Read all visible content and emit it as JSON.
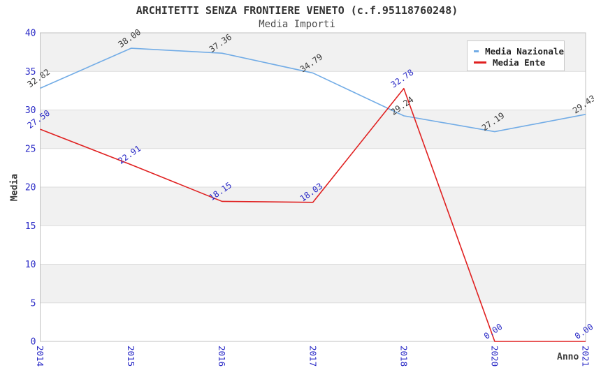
{
  "header": {
    "title": "ARCHITETTI SENZA FRONTIERE VENETO (c.f.95118760248)",
    "subtitle": "Media Importi"
  },
  "colors": {
    "tick_label": "#2a2ac6",
    "grid_line": "#dcdcdc",
    "band_fill": "#f1f1f1",
    "plot_border": "#c0c0c0",
    "title_text": "#333333",
    "axis_title_text": "#3a3a3a"
  },
  "legend": {
    "position": "top-right",
    "items": [
      {
        "label": "Media Nazionale",
        "color": "#72ace6"
      },
      {
        "label": "Media Ente",
        "color": "#e02020"
      }
    ]
  },
  "chart_data": {
    "type": "line",
    "title": "ARCHITETTI SENZA FRONTIERE VENETO (c.f.95118760248)",
    "subtitle": "Media Importi",
    "xlabel": "Anno",
    "ylabel": "Media",
    "categories": [
      "2014",
      "2015",
      "2016",
      "2017",
      "2018",
      "2020",
      "2021"
    ],
    "y_ticks": [
      0,
      5,
      10,
      15,
      20,
      25,
      30,
      35,
      40
    ],
    "ylim": [
      0,
      40
    ],
    "grid": "horizontal-bands",
    "legend_position": "top-right",
    "series": [
      {
        "name": "Media Nazionale",
        "color": "#72ace6",
        "label_color": "#3a3a3a",
        "values": [
          32.82,
          38.0,
          37.36,
          34.79,
          29.24,
          27.19,
          29.43
        ],
        "labels": [
          "32.82",
          "38.00",
          "37.36",
          "34.79",
          "29.24",
          "27.19",
          "29.43"
        ]
      },
      {
        "name": "Media Ente",
        "color": "#e02020",
        "label_color": "#2a2ac6",
        "values": [
          27.5,
          22.91,
          18.15,
          18.03,
          32.78,
          0.0,
          0.0
        ],
        "labels": [
          "27.50",
          "22.91",
          "18.15",
          "18.03",
          "32.78",
          "0.00",
          "0.00"
        ]
      }
    ]
  }
}
